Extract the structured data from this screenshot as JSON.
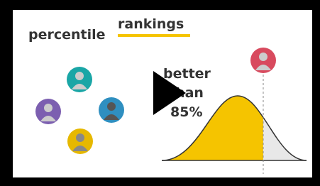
{
  "header": {
    "title_word": "percentile",
    "title_highlight": "rankings"
  },
  "callout": {
    "line1": "better",
    "line2": "than",
    "line3": "85%"
  }
}
